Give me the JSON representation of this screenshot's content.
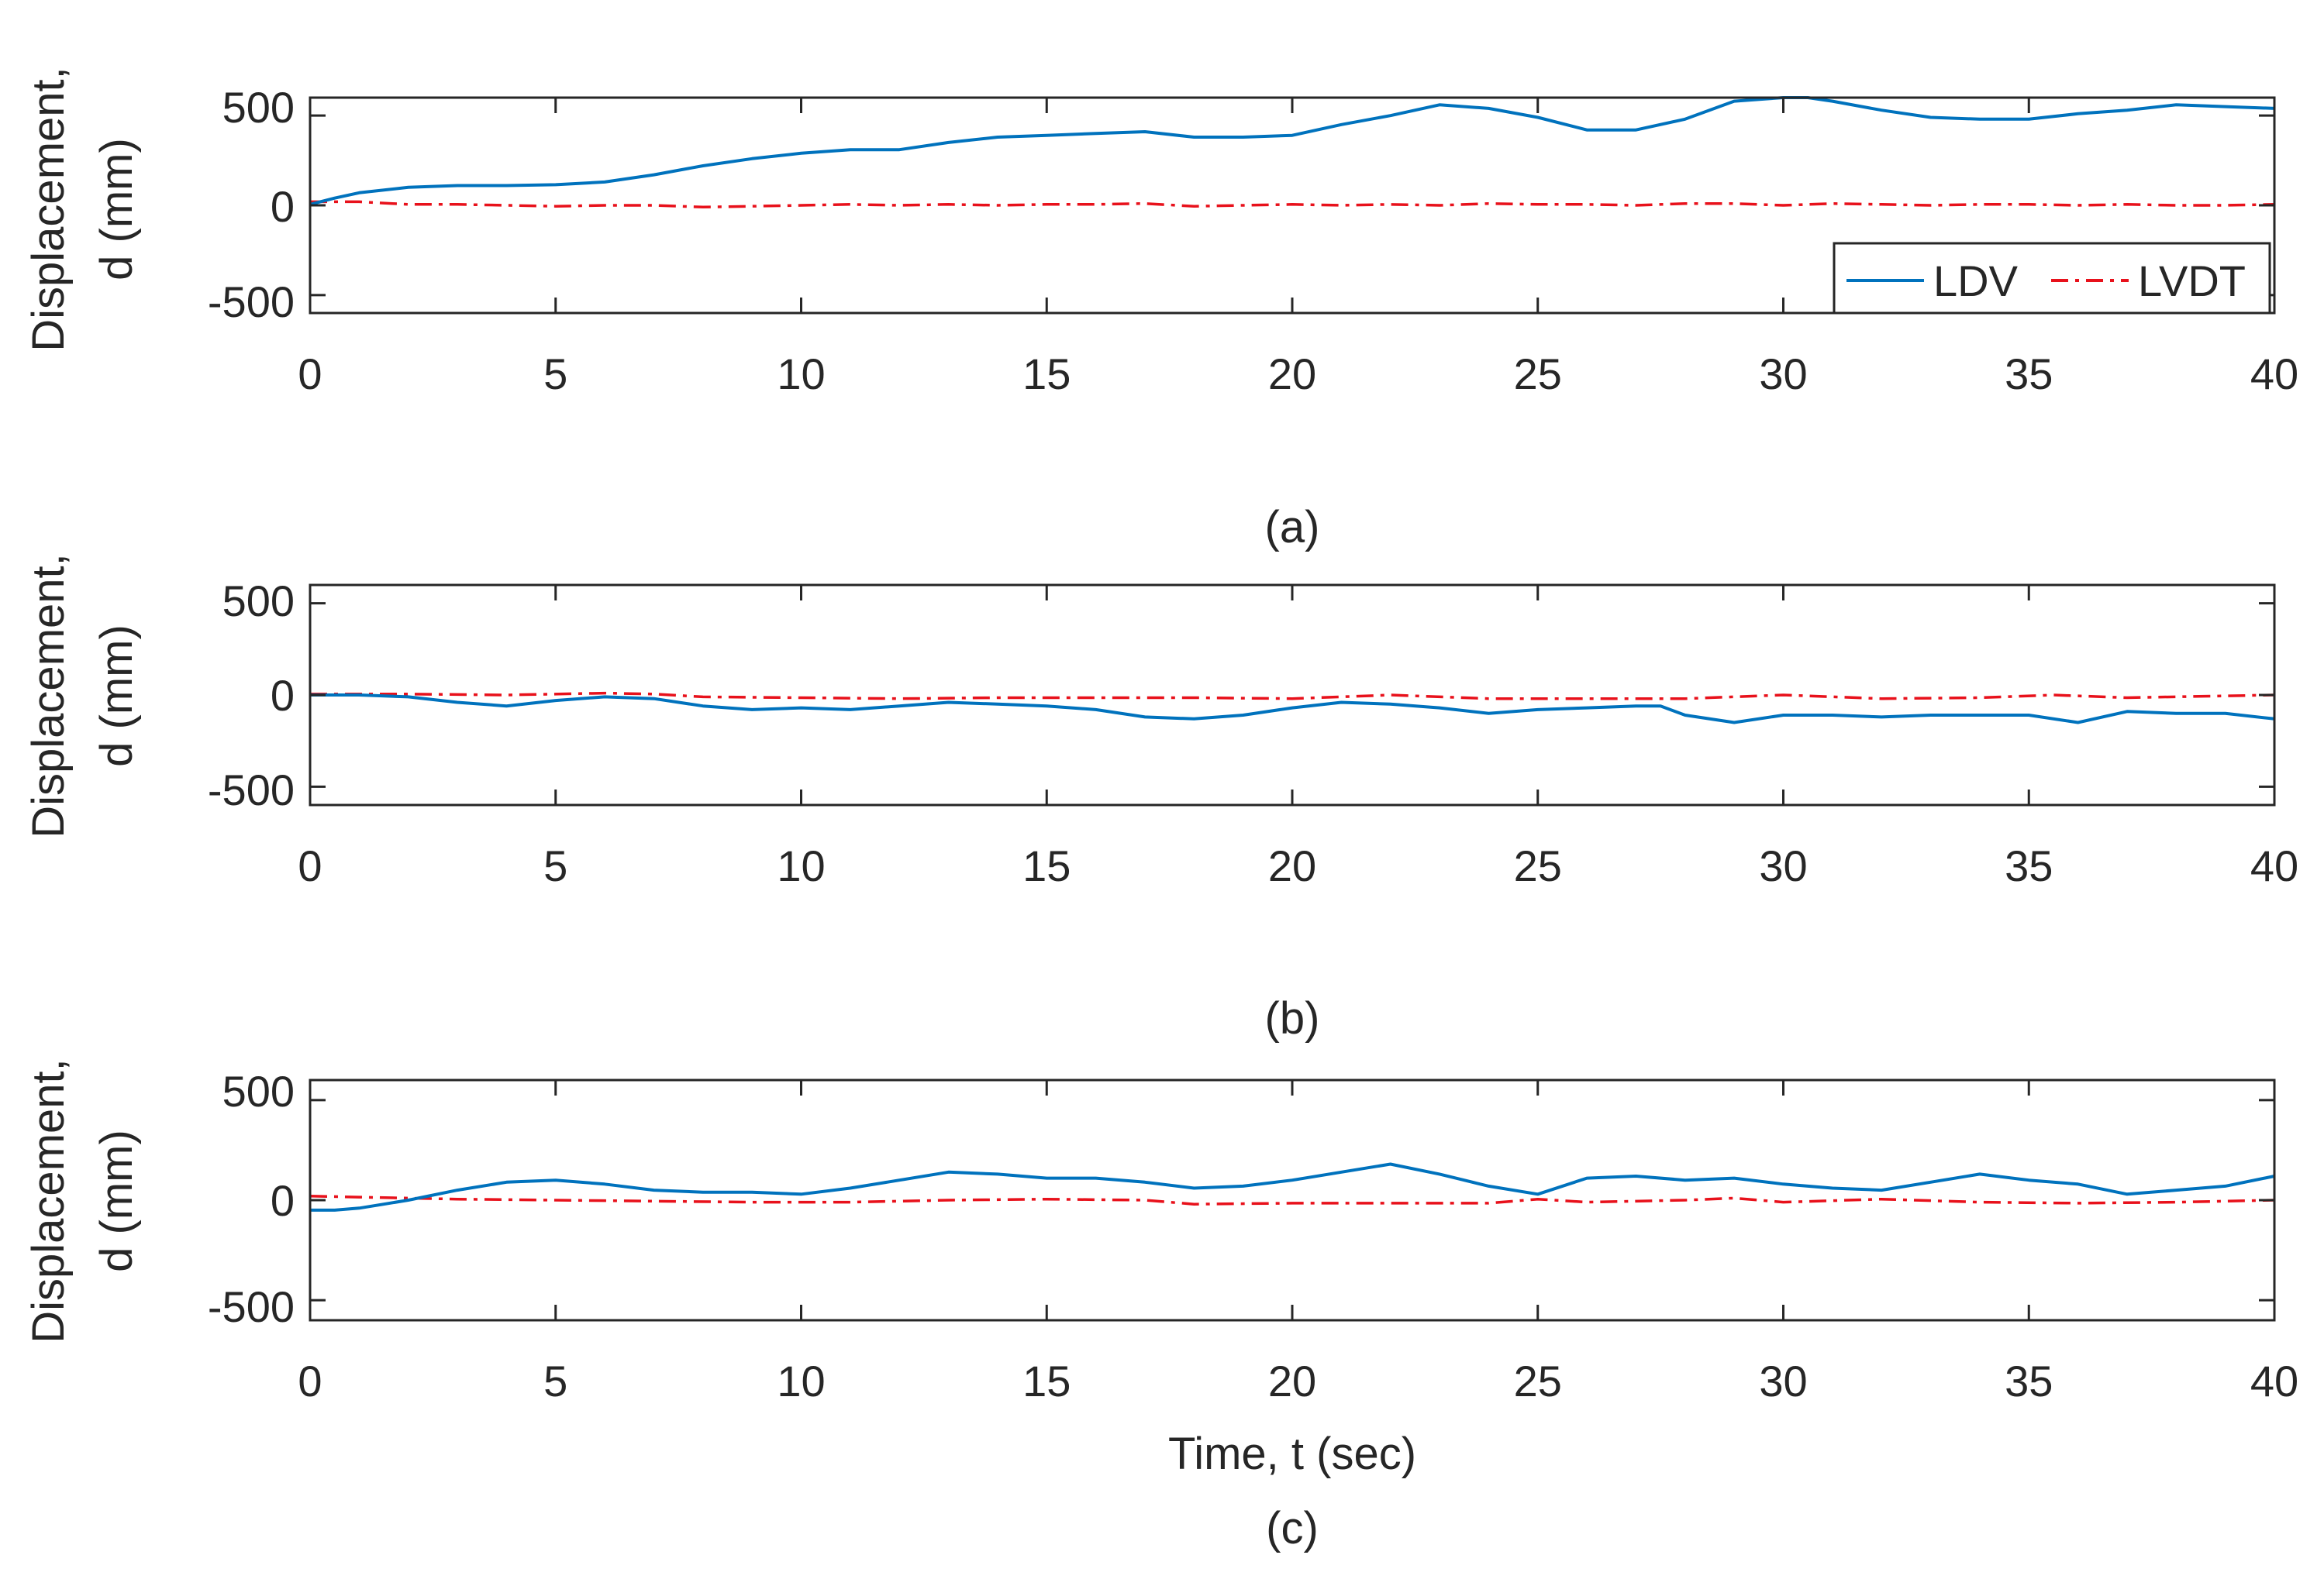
{
  "chart_data": [
    {
      "type": "line",
      "caption": "(a)",
      "ylabel_line1": "Displacement,",
      "ylabel_line2": "d (mm)",
      "xlabel": "",
      "xlim": [
        0,
        40
      ],
      "ylim": [
        -600,
        600
      ],
      "xticks": [
        0,
        5,
        10,
        15,
        20,
        25,
        30,
        35,
        40
      ],
      "xtick_labels": [
        "0",
        "5",
        "10",
        "15",
        "20",
        "25",
        "30",
        "35",
        "40"
      ],
      "yticks": [
        500,
        0,
        -500
      ],
      "ytick_labels": [
        "500",
        "0",
        "-500"
      ],
      "legend": {
        "placement": "bottom-right",
        "entries": [
          "LDV",
          "LVDT"
        ]
      },
      "series": [
        {
          "name": "LDV",
          "style": "solid",
          "color": "#0072bd",
          "x": [
            0,
            0.5,
            1,
            2,
            3,
            4,
            5,
            6,
            7,
            8,
            9,
            10,
            11,
            12,
            13,
            14,
            15,
            16,
            17,
            18,
            19,
            20,
            21,
            22,
            23,
            24,
            25,
            26,
            27,
            28,
            29,
            30,
            30.5,
            31,
            32,
            33,
            34,
            35,
            36,
            37,
            38,
            39,
            40
          ],
          "y": [
            5,
            40,
            70,
            100,
            110,
            110,
            115,
            130,
            170,
            220,
            260,
            290,
            310,
            310,
            350,
            380,
            390,
            400,
            410,
            380,
            380,
            390,
            450,
            500,
            560,
            540,
            490,
            420,
            420,
            480,
            580,
            600,
            600,
            580,
            530,
            490,
            480,
            480,
            510,
            530,
            560,
            550,
            540
          ]
        },
        {
          "name": "LVDT",
          "style": "dashdot",
          "color": "#e8111b",
          "x": [
            0,
            1,
            2,
            3,
            4,
            5,
            6,
            7,
            8,
            9,
            10,
            11,
            12,
            13,
            14,
            15,
            16,
            17,
            18,
            19,
            20,
            21,
            22,
            23,
            24,
            25,
            26,
            27,
            28,
            29,
            30,
            31,
            32,
            33,
            34,
            35,
            36,
            37,
            38,
            39,
            40
          ],
          "y": [
            20,
            20,
            5,
            5,
            0,
            -5,
            0,
            0,
            -10,
            -5,
            0,
            5,
            0,
            5,
            0,
            5,
            5,
            10,
            -5,
            0,
            5,
            0,
            5,
            0,
            10,
            5,
            5,
            0,
            10,
            10,
            0,
            10,
            5,
            0,
            5,
            5,
            0,
            5,
            0,
            0,
            5
          ]
        }
      ]
    },
    {
      "type": "line",
      "caption": "(b)",
      "ylabel_line1": "Displacement,",
      "ylabel_line2": "d (mm)",
      "xlabel": "",
      "xlim": [
        0,
        40
      ],
      "ylim": [
        -600,
        600
      ],
      "xticks": [
        0,
        5,
        10,
        15,
        20,
        25,
        30,
        35,
        40
      ],
      "xtick_labels": [
        "0",
        "5",
        "10",
        "15",
        "20",
        "25",
        "30",
        "35",
        "40"
      ],
      "yticks": [
        500,
        0,
        -500
      ],
      "ytick_labels": [
        "500",
        "0",
        "-500"
      ],
      "series": [
        {
          "name": "LDV",
          "style": "solid",
          "color": "#0072bd",
          "x": [
            0,
            1,
            2,
            3,
            4,
            5,
            6,
            7,
            8,
            9,
            10,
            11,
            12,
            13,
            14,
            15,
            16,
            17,
            18,
            19,
            20,
            21,
            22,
            23,
            24,
            25,
            26,
            27,
            27.5,
            28,
            29,
            30,
            31,
            32,
            33,
            34,
            35,
            36,
            37,
            38,
            39,
            40
          ],
          "y": [
            0,
            0,
            -10,
            -40,
            -60,
            -30,
            -10,
            -20,
            -60,
            -80,
            -70,
            -80,
            -60,
            -40,
            -50,
            -60,
            -80,
            -120,
            -130,
            -110,
            -70,
            -40,
            -50,
            -70,
            -100,
            -80,
            -70,
            -60,
            -60,
            -110,
            -150,
            -110,
            -110,
            -120,
            -110,
            -110,
            -110,
            -150,
            -90,
            -100,
            -100,
            -130
          ]
        },
        {
          "name": "LVDT",
          "style": "dashdot",
          "color": "#e8111b",
          "x": [
            0,
            2,
            4,
            6,
            7,
            8,
            10,
            12,
            14,
            16,
            18,
            20,
            22,
            24,
            26,
            28,
            30,
            32,
            34,
            35.5,
            37,
            40
          ],
          "y": [
            5,
            5,
            0,
            10,
            5,
            -10,
            -15,
            -20,
            -15,
            -15,
            -15,
            -20,
            0,
            -20,
            -20,
            -20,
            0,
            -20,
            -15,
            0,
            -15,
            0
          ]
        }
      ]
    },
    {
      "type": "line",
      "caption": "(c)",
      "ylabel_line1": "Displacement,",
      "ylabel_line2": "d (mm)",
      "xlabel": "Time, t (sec)",
      "xlim": [
        0,
        40
      ],
      "ylim": [
        -600,
        600
      ],
      "xticks": [
        0,
        5,
        10,
        15,
        20,
        25,
        30,
        35,
        40
      ],
      "xtick_labels": [
        "0",
        "5",
        "10",
        "15",
        "20",
        "25",
        "30",
        "35",
        "40"
      ],
      "yticks": [
        500,
        0,
        -500
      ],
      "ytick_labels": [
        "500",
        "0",
        "-500"
      ],
      "series": [
        {
          "name": "LDV",
          "style": "solid",
          "color": "#0072bd",
          "x": [
            0,
            0.5,
            1,
            1.5,
            2,
            3,
            4,
            5,
            6,
            7,
            8,
            9,
            10,
            11,
            12,
            13,
            14,
            15,
            16,
            17,
            18,
            19,
            20,
            21,
            22,
            23,
            24,
            25,
            26,
            27,
            28,
            29,
            30,
            31,
            32,
            33,
            34,
            35,
            36,
            37,
            38,
            39,
            40
          ],
          "y": [
            -50,
            -50,
            -40,
            -20,
            0,
            50,
            90,
            100,
            80,
            50,
            40,
            40,
            30,
            60,
            100,
            140,
            130,
            110,
            110,
            90,
            60,
            70,
            100,
            140,
            180,
            130,
            70,
            30,
            110,
            120,
            100,
            110,
            80,
            60,
            50,
            90,
            130,
            100,
            80,
            30,
            50,
            70,
            120
          ]
        },
        {
          "name": "LVDT",
          "style": "dashdot",
          "color": "#e8111b",
          "x": [
            0,
            1,
            2,
            3,
            5,
            7,
            9,
            11,
            13,
            15,
            17,
            18,
            20,
            22,
            24,
            25,
            26,
            28,
            29,
            30,
            32,
            34,
            36,
            38,
            40
          ],
          "y": [
            20,
            15,
            10,
            5,
            0,
            -5,
            -10,
            -10,
            0,
            5,
            0,
            -20,
            -15,
            -15,
            -15,
            5,
            -10,
            0,
            10,
            -10,
            5,
            -10,
            -15,
            -10,
            0
          ]
        }
      ]
    }
  ]
}
